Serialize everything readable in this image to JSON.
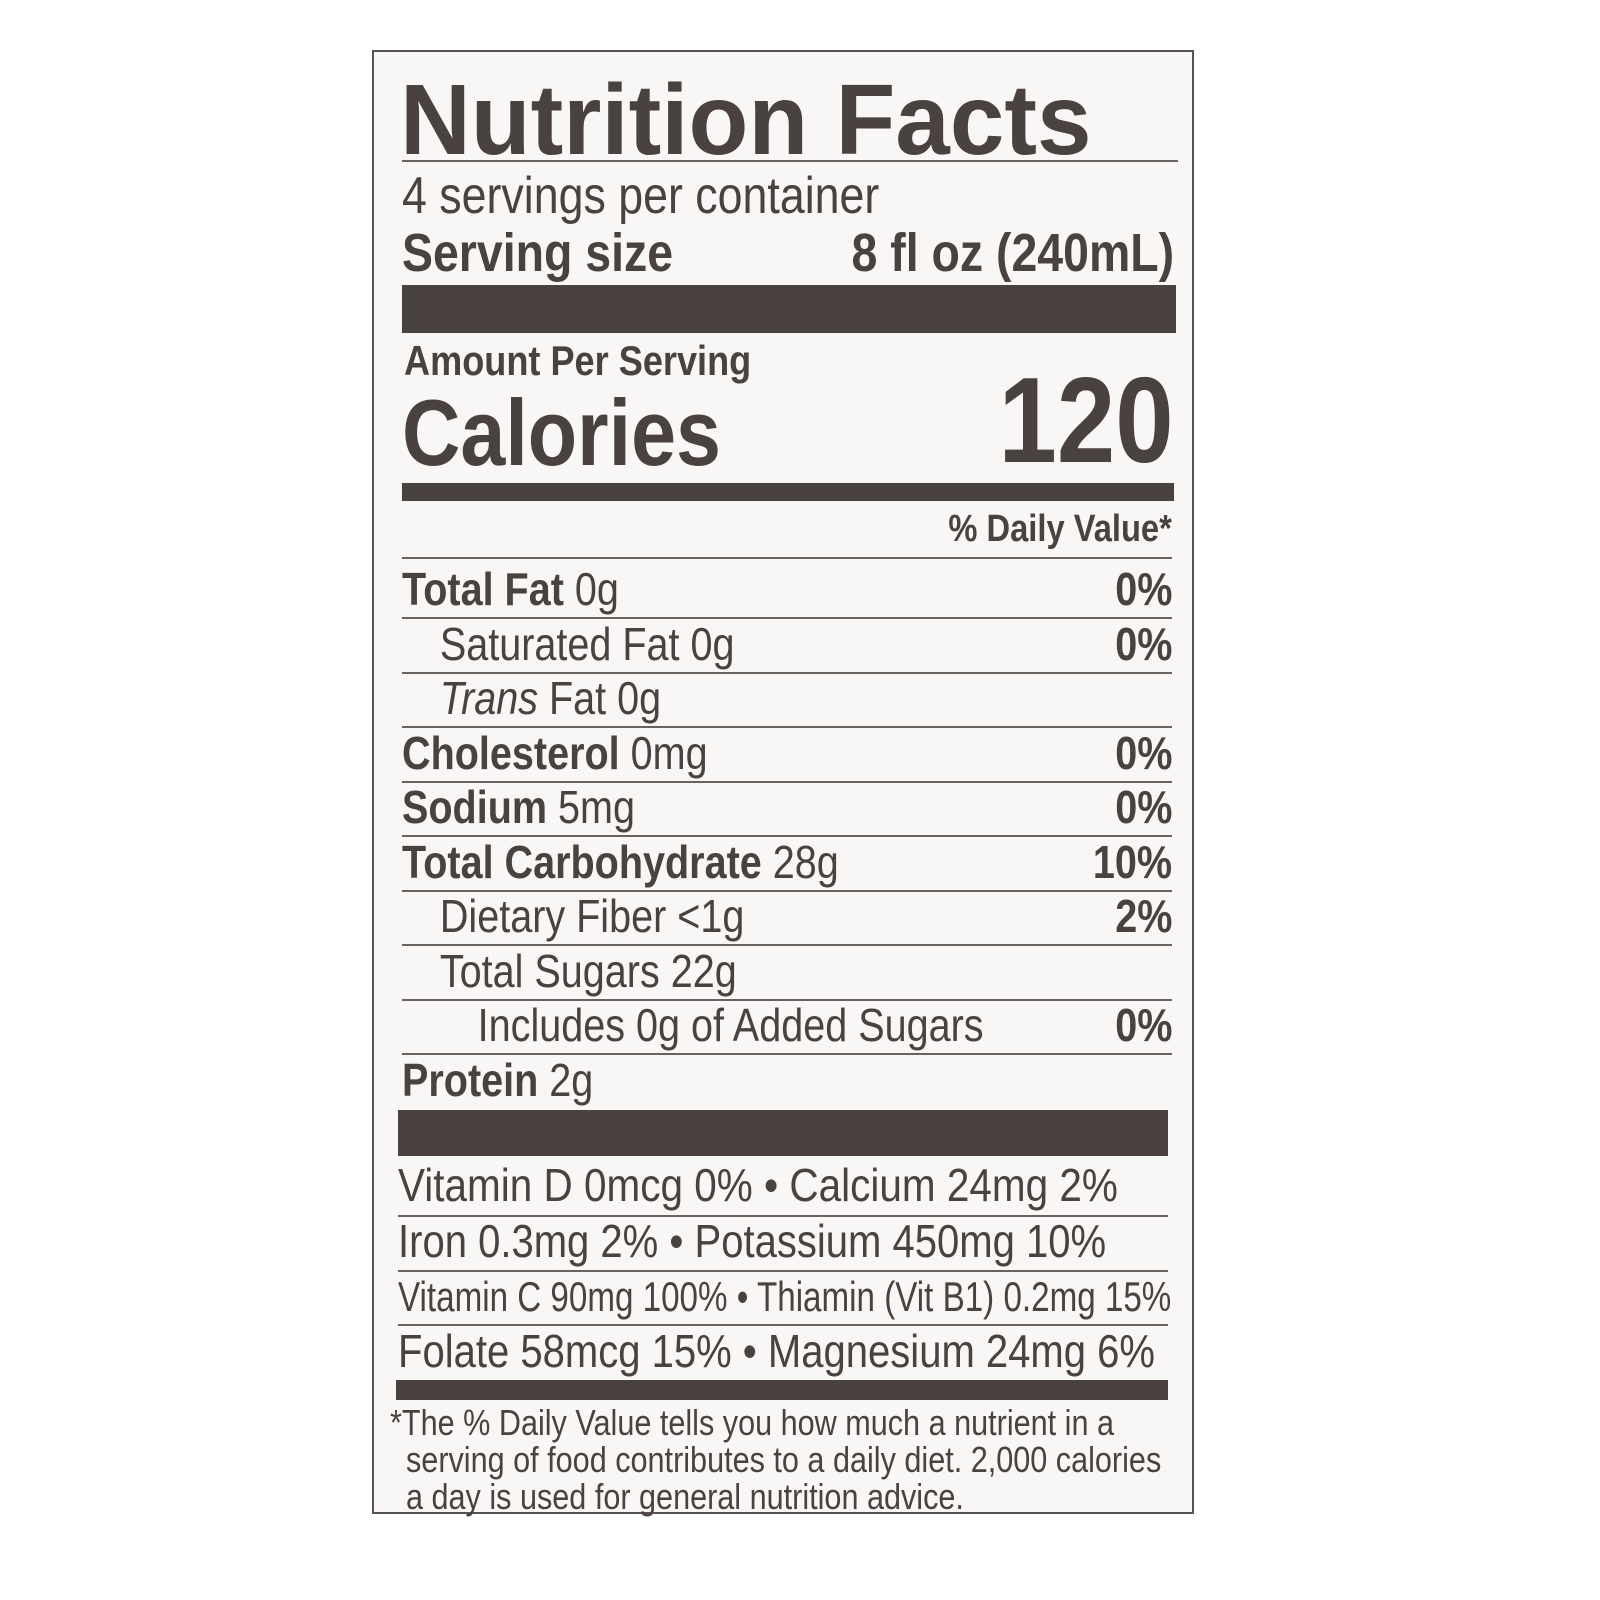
{
  "title": "Nutrition Facts",
  "servings_per_container": "4 servings per container",
  "serving_size_label": "Serving size",
  "serving_size_value": "8 fl oz (240mL)",
  "amount_per_serving": "Amount Per Serving",
  "calories_label": "Calories",
  "calories_value": "120",
  "daily_value_header": "% Daily Value*",
  "nutrients": [
    {
      "name": "Total Fat",
      "amount": "0g",
      "dv": "0%",
      "bold": true,
      "indent": 0
    },
    {
      "name": "Saturated Fat",
      "amount": "0g",
      "dv": "0%",
      "bold": false,
      "indent": 1
    },
    {
      "name": "Trans",
      "name_suffix": "Fat",
      "amount": "0g",
      "dv": "",
      "bold": false,
      "indent": 1
    },
    {
      "name": "Cholesterol",
      "amount": "0mg",
      "dv": "0%",
      "bold": true,
      "indent": 0
    },
    {
      "name": "Sodium",
      "amount": "5mg",
      "dv": "0%",
      "bold": true,
      "indent": 0
    },
    {
      "name": "Total Carbohydrate",
      "amount": "28g",
      "dv": "10%",
      "bold": true,
      "indent": 0
    },
    {
      "name": "Dietary Fiber",
      "amount": "<1g",
      "dv": "2%",
      "bold": false,
      "indent": 1
    },
    {
      "name": "Total Sugars",
      "amount": "22g",
      "dv": "",
      "bold": false,
      "indent": 1
    },
    {
      "name": "Includes 0g of Added Sugars",
      "amount": "",
      "dv": "0%",
      "bold": false,
      "indent": 2
    },
    {
      "name": "Protein",
      "amount": "2g",
      "dv": "",
      "bold": true,
      "indent": 0
    }
  ],
  "vitamins": [
    "Vitamin D 0mcg 0% • Calcium 24mg 2%",
    "Iron 0.3mg 2% • Potassium 450mg 10%",
    "Vitamin C 90mg 100% • Thiamin (Vit B1) 0.2mg 15%",
    "Folate 58mcg 15% • Magnesium 24mg 6%"
  ],
  "footnote": [
    "*The % Daily Value tells you how much a nutrient in a",
    "serving of food contributes to a daily diet. 2,000 calories",
    "a day is used for general nutrition advice."
  ]
}
